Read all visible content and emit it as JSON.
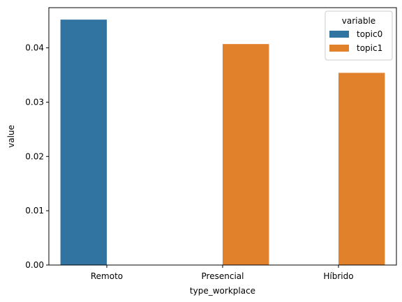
{
  "chart_data": {
    "type": "bar",
    "categories": [
      "Remoto",
      "Presencial",
      "Híbrido"
    ],
    "series": [
      {
        "name": "topic0",
        "color": "#3274a1",
        "values": [
          0.0452,
          null,
          null
        ]
      },
      {
        "name": "topic1",
        "color": "#e1812c",
        "values": [
          null,
          0.0407,
          0.0354
        ]
      }
    ],
    "xlabel": "type_workplace",
    "ylabel": "value",
    "ylim": [
      0,
      0.0474
    ],
    "yticks": [
      0.0,
      0.01,
      0.02,
      0.03,
      0.04
    ],
    "ytick_labels": [
      "0.00",
      "0.01",
      "0.02",
      "0.03",
      "0.04"
    ],
    "grid": false,
    "legend": {
      "title": "variable",
      "placement": "top-right",
      "entries": [
        "topic0",
        "topic1"
      ]
    }
  }
}
